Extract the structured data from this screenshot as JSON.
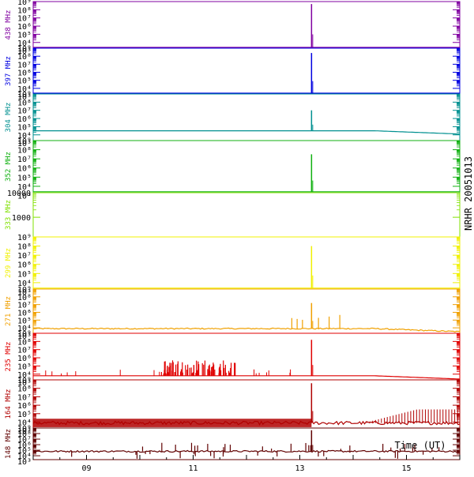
{
  "chart_data": {
    "type": "line",
    "title": "NRHR 20051013",
    "xlabel": "Time (UT)",
    "x_ticks": [
      "09",
      "11",
      "13",
      "15"
    ],
    "x_tick_hours": [
      9,
      11,
      13,
      15
    ],
    "xlim_hours": [
      8.0,
      16.0
    ],
    "burst_hour": 13.22,
    "y_scale": "log",
    "panels": [
      {
        "name": "438 MHz",
        "color": "#8000a0",
        "ylim_exp": [
          3.3,
          9.0
        ],
        "tick_labels": [
          "10⁹",
          "10⁸",
          "10⁷",
          "10⁶",
          "10⁵",
          "10⁴",
          "10³"
        ],
        "baseline_exp": 3.4,
        "peak_exp": 8.7,
        "activity": "quiet"
      },
      {
        "name": "397 MHz",
        "color": "#0000e0",
        "ylim_exp": [
          3.3,
          9.0
        ],
        "tick_labels": [
          "10⁹",
          "10⁸",
          "10⁷",
          "10⁶",
          "10⁵",
          "10⁴",
          "10³"
        ],
        "baseline_exp": 3.4,
        "peak_exp": 8.4,
        "activity": "quiet"
      },
      {
        "name": "304 MHz",
        "color": "#009090",
        "ylim_exp": [
          3.3,
          9.0
        ],
        "tick_labels": [
          "10⁹",
          "10⁸",
          "10⁷",
          "10⁶",
          "10⁵",
          "10⁴",
          "10³"
        ],
        "baseline_exp": 4.5,
        "peak_exp": 7.0,
        "activity": "decay"
      },
      {
        "name": "352 MHz",
        "color": "#10b010",
        "ylim_exp": [
          3.3,
          9.0
        ],
        "tick_labels": [
          "10⁹",
          "10⁸",
          "10⁷",
          "10⁶",
          "10⁵",
          "10⁴",
          "10³"
        ],
        "baseline_exp": 3.4,
        "peak_exp": 7.5,
        "activity": "quiet"
      },
      {
        "name": "333 MHz",
        "color": "#80e000",
        "ylim_exp": [
          2.2,
          4.0
        ],
        "tick_labels": [
          "10000",
          "1000"
        ],
        "tick_values": [
          4,
          3
        ],
        "labels_plain": true,
        "baseline_exp": null,
        "peak_exp": null,
        "activity": "empty"
      },
      {
        "name": "299 MHz",
        "color": "#f0f000",
        "ylim_exp": [
          3.3,
          9.0
        ],
        "tick_labels": [
          "10⁹",
          "10⁸",
          "10⁷",
          "10⁶",
          "10⁵",
          "10⁴",
          "10³"
        ],
        "baseline_exp": 3.4,
        "peak_exp": 8.0,
        "activity": "quiet"
      },
      {
        "name": "271 MHz",
        "color": "#f0a000",
        "ylim_exp": [
          3.3,
          9.0
        ],
        "tick_labels": [
          "10⁹",
          "10⁸",
          "10⁷",
          "10⁶",
          "10⁵",
          "10⁴",
          "10³"
        ],
        "baseline_exp": 3.9,
        "peak_exp": 7.2,
        "activity": "moderate"
      },
      {
        "name": "235 MHz",
        "color": "#e00000",
        "ylim_exp": [
          3.3,
          9.0
        ],
        "tick_labels": [
          "10⁹",
          "10⁸",
          "10⁷",
          "10⁶",
          "10⁵",
          "10⁴",
          "10³"
        ],
        "baseline_exp": 3.8,
        "peak_exp": 8.2,
        "activity": "active"
      },
      {
        "name": "164 MHz",
        "color": "#b00000",
        "ylim_exp": [
          3.3,
          9.0
        ],
        "tick_labels": [
          "10⁹",
          "10⁸",
          "10⁷",
          "10⁶",
          "10⁵",
          "10⁴",
          "10³"
        ],
        "baseline_exp": 3.9,
        "peak_exp": 8.6,
        "activity": "noisy"
      },
      {
        "name": "148 MHz",
        "color": "#600000",
        "ylim_exp": [
          3.3,
          9.0
        ],
        "tick_labels": [
          "10⁹",
          "10⁸",
          "10⁷",
          "10⁶",
          "10⁵",
          "10⁴",
          "10³"
        ],
        "baseline_exp": 4.8,
        "peak_exp": 8.6,
        "activity": "spiky"
      }
    ]
  }
}
